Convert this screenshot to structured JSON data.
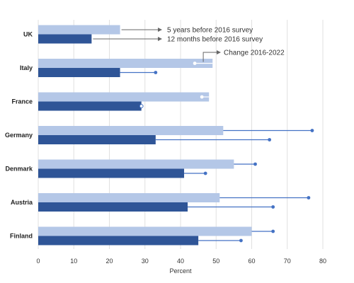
{
  "chart_data": {
    "type": "bar",
    "orientation": "horizontal",
    "categories": [
      "UK",
      "Italy",
      "France",
      "Germany",
      "Denmark",
      "Austria",
      "Finland"
    ],
    "series": [
      {
        "name": "5 years before 2016 survey",
        "color": "#b4c7e7",
        "values": [
          23,
          49,
          48,
          52,
          55,
          51,
          60
        ]
      },
      {
        "name": "12 months before 2016 survey",
        "color": "#2f5597",
        "values": [
          15,
          23,
          29,
          33,
          41,
          42,
          45
        ]
      }
    ],
    "change_2016_2022": {
      "name": "Change 2016-2022",
      "color": "#4472c4",
      "five_years_end": [
        null,
        44,
        46,
        77,
        61,
        76,
        66
      ],
      "twelve_months_end": [
        null,
        33,
        29,
        65,
        47,
        66,
        57
      ]
    },
    "xlabel": "Percent",
    "xlim": [
      0,
      80
    ],
    "xticks": [
      0,
      10,
      20,
      30,
      40,
      50,
      60,
      70,
      80
    ],
    "grid": "vertical",
    "legend": "annotations-top"
  }
}
